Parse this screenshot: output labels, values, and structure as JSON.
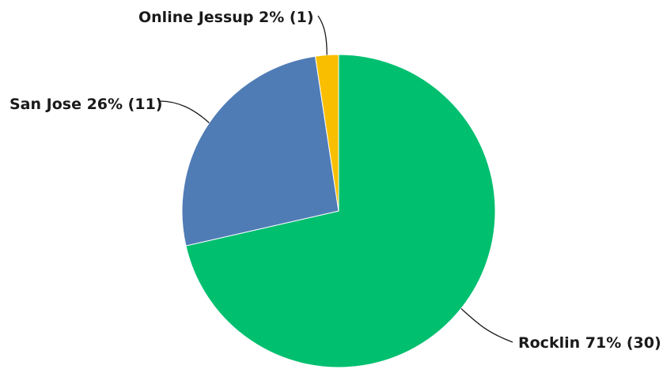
{
  "chart_data": {
    "type": "pie",
    "slices": [
      {
        "name": "Rocklin",
        "percent": 71,
        "count": 30,
        "color": "#00BF6F",
        "label": "Rocklin 71% (30)"
      },
      {
        "name": "San Jose",
        "percent": 26,
        "count": 11,
        "color": "#507CB6",
        "label": "San Jose 26% (11)"
      },
      {
        "name": "Online Jessup",
        "percent": 2,
        "count": 1,
        "color": "#F9BE00",
        "label": "Online Jessup 2% (1)"
      }
    ],
    "legend": "none"
  }
}
